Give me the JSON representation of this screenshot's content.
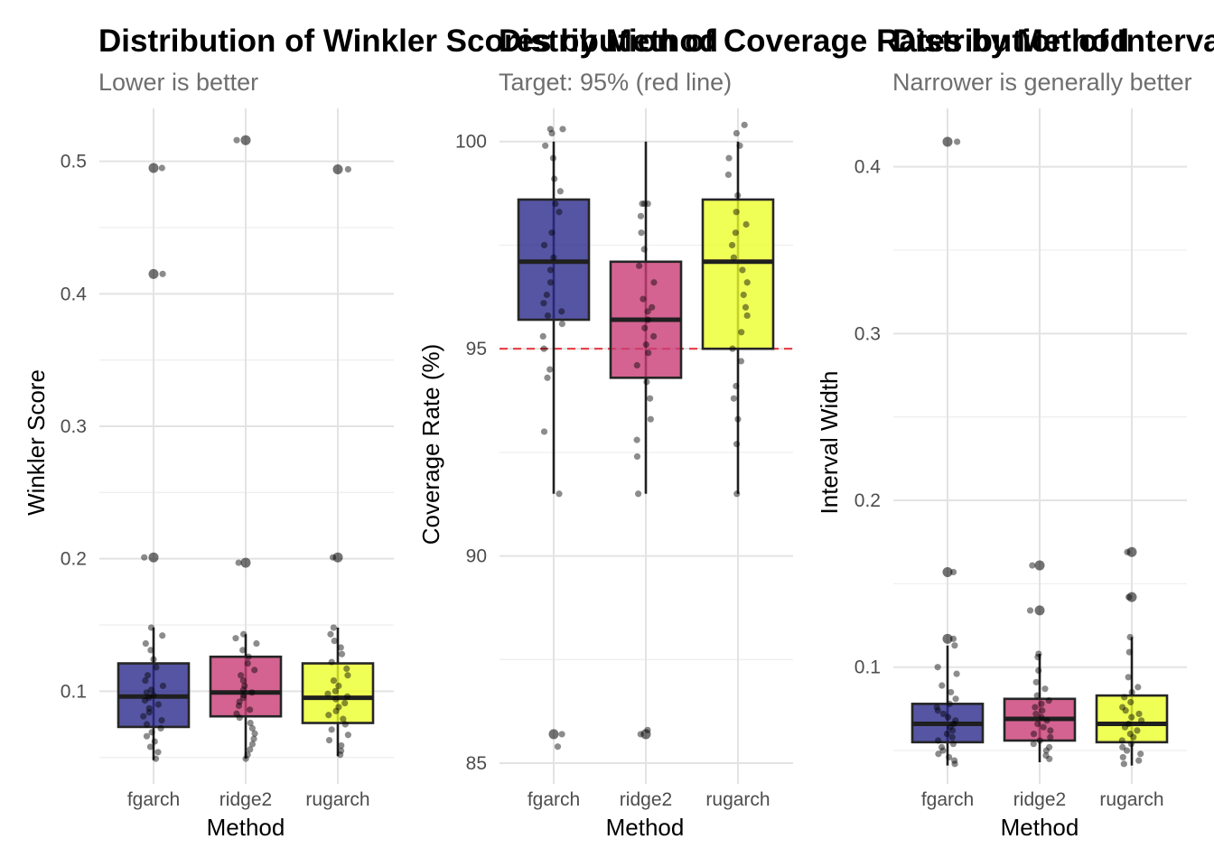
{
  "chart_data": [
    {
      "type": "boxplot",
      "title": "Distribution of Winkler Scores by Method",
      "subtitle": "Lower is better",
      "xlabel": "Method",
      "ylabel": "Winkler Score",
      "categories": [
        "fgarch",
        "ridge2",
        "rugarch"
      ],
      "ylim": [
        0.03,
        0.54
      ],
      "yticks": [
        0.1,
        0.2,
        0.3,
        0.4,
        0.5
      ],
      "tick_labels": [
        "0.1",
        "0.2",
        "0.3",
        "0.4",
        "0.5"
      ],
      "fill_colors": [
        "#2b2a8c",
        "#c93c75",
        "#ecff2a"
      ],
      "grid": true,
      "legend": "none",
      "boxes": [
        {
          "q1": 0.073,
          "median": 0.096,
          "q3": 0.121,
          "whisker_low": 0.048,
          "whisker_high": 0.148
        },
        {
          "q1": 0.081,
          "median": 0.099,
          "q3": 0.126,
          "whisker_low": 0.049,
          "whisker_high": 0.143
        },
        {
          "q1": 0.076,
          "median": 0.095,
          "q3": 0.121,
          "whisker_low": 0.051,
          "whisker_high": 0.148
        }
      ],
      "outliers": [
        [
          0.495,
          0.415,
          0.201
        ],
        [
          0.516,
          0.197
        ],
        [
          0.494,
          0.201
        ]
      ],
      "points": [
        [
          0.495,
          0.415,
          0.201,
          0.148,
          0.142,
          0.136,
          0.131,
          0.124,
          0.118,
          0.112,
          0.108,
          0.104,
          0.101,
          0.099,
          0.097,
          0.095,
          0.093,
          0.09,
          0.087,
          0.084,
          0.081,
          0.078,
          0.075,
          0.072,
          0.069,
          0.066,
          0.062,
          0.058,
          0.054,
          0.049
        ],
        [
          0.516,
          0.197,
          0.143,
          0.14,
          0.136,
          0.131,
          0.126,
          0.121,
          0.116,
          0.112,
          0.108,
          0.104,
          0.101,
          0.099,
          0.097,
          0.095,
          0.092,
          0.089,
          0.086,
          0.083,
          0.08,
          0.076,
          0.072,
          0.068,
          0.064,
          0.06,
          0.056,
          0.052,
          0.049
        ],
        [
          0.494,
          0.201,
          0.148,
          0.143,
          0.138,
          0.133,
          0.128,
          0.122,
          0.117,
          0.112,
          0.108,
          0.104,
          0.1,
          0.098,
          0.096,
          0.094,
          0.091,
          0.088,
          0.085,
          0.082,
          0.079,
          0.075,
          0.071,
          0.067,
          0.063,
          0.059,
          0.055,
          0.052
        ]
      ]
    },
    {
      "type": "boxplot",
      "title": "Distribution of Coverage Rates by Method",
      "subtitle": "Target: 95% (red line)",
      "xlabel": "Method",
      "ylabel": "Coverage Rate (%)",
      "categories": [
        "fgarch",
        "ridge2",
        "rugarch"
      ],
      "ylim": [
        84.5,
        100.8
      ],
      "yticks": [
        85,
        90,
        95,
        100
      ],
      "tick_labels": [
        "85",
        "90",
        "95",
        "100"
      ],
      "fill_colors": [
        "#2b2a8c",
        "#c93c75",
        "#ecff2a"
      ],
      "reference_line": {
        "value": 95,
        "color": "#e8363b",
        "style": "dashed"
      },
      "grid": true,
      "legend": "none",
      "boxes": [
        {
          "q1": 95.7,
          "median": 97.1,
          "q3": 98.6,
          "whisker_low": 91.5,
          "whisker_high": 100
        },
        {
          "q1": 94.3,
          "median": 95.7,
          "q3": 97.1,
          "whisker_low": 91.5,
          "whisker_high": 100
        },
        {
          "q1": 95.0,
          "median": 97.1,
          "q3": 98.6,
          "whisker_low": 91.5,
          "whisker_high": 100
        }
      ],
      "outliers": [
        [
          85.7
        ],
        [
          85.7
        ],
        []
      ],
      "points": [
        [
          100.3,
          100.3,
          100.2,
          99.9,
          99.6,
          99.1,
          98.8,
          98.5,
          98.3,
          97.8,
          97.5,
          97.2,
          96.9,
          96.6,
          96.3,
          96.1,
          95.9,
          95.8,
          95.6,
          95.3,
          95.0,
          94.5,
          94.3,
          93.0,
          91.5,
          85.7,
          85.4
        ],
        [
          98.5,
          98.5,
          98.5,
          98.2,
          97.8,
          97.4,
          97.0,
          96.6,
          96.2,
          96.0,
          95.9,
          95.7,
          95.5,
          95.3,
          95.1,
          94.9,
          94.6,
          94.2,
          93.8,
          93.3,
          92.8,
          92.4,
          91.5,
          85.8,
          85.7
        ],
        [
          100.4,
          100.2,
          99.9,
          99.6,
          99.2,
          98.7,
          98.3,
          98.0,
          97.8,
          97.5,
          97.2,
          96.9,
          96.6,
          96.3,
          96.0,
          95.8,
          95.4,
          95.0,
          94.7,
          94.1,
          93.8,
          93.3,
          92.7,
          91.5
        ]
      ]
    },
    {
      "type": "boxplot",
      "title": "Distribution of Interval Widths by Method",
      "subtitle": "Narrower is generally better",
      "xlabel": "Method",
      "ylabel": "Interval Width",
      "categories": [
        "fgarch",
        "ridge2",
        "rugarch"
      ],
      "ylim": [
        0.03,
        0.435
      ],
      "yticks": [
        0.1,
        0.2,
        0.3,
        0.4
      ],
      "tick_labels": [
        "0.1",
        "0.2",
        "0.3",
        "0.4"
      ],
      "fill_colors": [
        "#2b2a8c",
        "#c93c75",
        "#ecff2a"
      ],
      "grid": true,
      "legend": "none",
      "boxes": [
        {
          "q1": 0.055,
          "median": 0.066,
          "q3": 0.078,
          "whisker_low": 0.041,
          "whisker_high": 0.113
        },
        {
          "q1": 0.056,
          "median": 0.069,
          "q3": 0.081,
          "whisker_low": 0.043,
          "whisker_high": 0.108
        },
        {
          "q1": 0.055,
          "median": 0.066,
          "q3": 0.083,
          "whisker_low": 0.041,
          "whisker_high": 0.118
        }
      ],
      "outliers": [
        [
          0.415,
          0.157,
          0.117
        ],
        [
          0.161,
          0.134
        ],
        [
          0.169,
          0.142
        ]
      ],
      "points": [
        [
          0.415,
          0.157,
          0.117,
          0.113,
          0.1,
          0.096,
          0.089,
          0.085,
          0.081,
          0.078,
          0.076,
          0.074,
          0.072,
          0.07,
          0.068,
          0.066,
          0.064,
          0.062,
          0.06,
          0.058,
          0.056,
          0.054,
          0.052,
          0.05,
          0.048,
          0.046,
          0.044,
          0.042
        ],
        [
          0.161,
          0.134,
          0.108,
          0.106,
          0.098,
          0.091,
          0.087,
          0.083,
          0.08,
          0.078,
          0.076,
          0.074,
          0.072,
          0.07,
          0.068,
          0.066,
          0.064,
          0.062,
          0.06,
          0.058,
          0.056,
          0.054,
          0.052,
          0.05,
          0.047,
          0.045
        ],
        [
          0.169,
          0.142,
          0.118,
          0.109,
          0.094,
          0.088,
          0.085,
          0.082,
          0.079,
          0.076,
          0.074,
          0.072,
          0.07,
          0.068,
          0.066,
          0.064,
          0.062,
          0.06,
          0.058,
          0.056,
          0.054,
          0.052,
          0.05,
          0.048,
          0.046,
          0.044,
          0.042
        ]
      ]
    }
  ]
}
